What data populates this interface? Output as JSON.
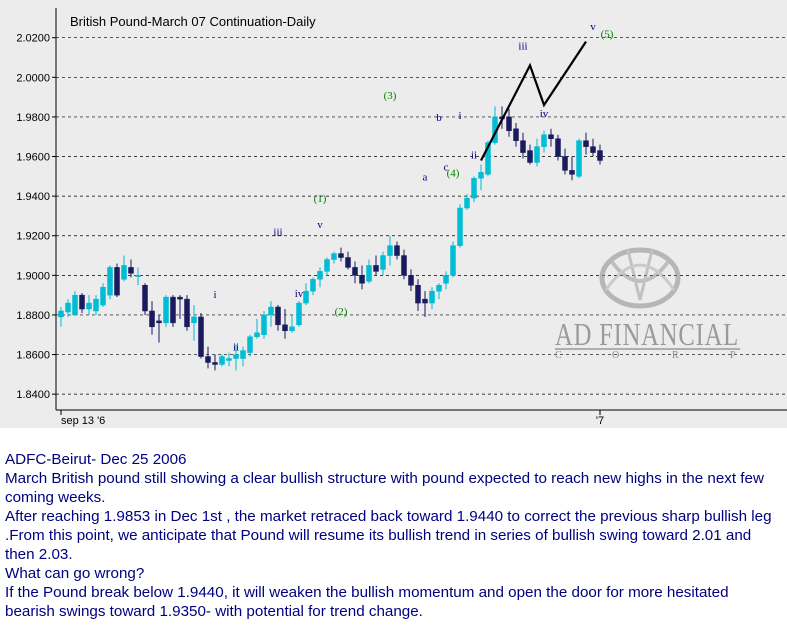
{
  "chart_data": {
    "type": "candlestick",
    "title": "British Pound-March 07 Continuation-Daily",
    "ylim": [
      1.832,
      2.035
    ],
    "y_ticks": [
      "2.0200",
      "2.0000",
      "1.9800",
      "1.9600",
      "1.9400",
      "1.9200",
      "1.9000",
      "1.8800",
      "1.8600",
      "1.8400"
    ],
    "x_tick_labels": [
      {
        "label": "sep 13 '6",
        "index": 0
      },
      {
        "label": "'7",
        "index": 77
      }
    ],
    "grid": true,
    "candles": [
      {
        "o": 1.879,
        "h": 1.884,
        "l": 1.874,
        "c": 1.882
      },
      {
        "o": 1.8815,
        "h": 1.888,
        "l": 1.879,
        "c": 1.886
      },
      {
        "o": 1.88,
        "h": 1.892,
        "l": 1.88,
        "c": 1.89
      },
      {
        "o": 1.89,
        "h": 1.891,
        "l": 1.881,
        "c": 1.883
      },
      {
        "o": 1.883,
        "h": 1.89,
        "l": 1.88,
        "c": 1.886
      },
      {
        "o": 1.882,
        "h": 1.89,
        "l": 1.88,
        "c": 1.888
      },
      {
        "o": 1.885,
        "h": 1.896,
        "l": 1.884,
        "c": 1.894
      },
      {
        "o": 1.89,
        "h": 1.905,
        "l": 1.888,
        "c": 1.904
      },
      {
        "o": 1.904,
        "h": 1.906,
        "l": 1.889,
        "c": 1.89
      },
      {
        "o": 1.898,
        "h": 1.91,
        "l": 1.897,
        "c": 1.905
      },
      {
        "o": 1.904,
        "h": 1.908,
        "l": 1.899,
        "c": 1.901
      },
      {
        "o": 1.9,
        "h": 1.904,
        "l": 1.895,
        "c": 1.9
      },
      {
        "o": 1.895,
        "h": 1.896,
        "l": 1.88,
        "c": 1.882
      },
      {
        "o": 1.882,
        "h": 1.887,
        "l": 1.87,
        "c": 1.874
      },
      {
        "o": 1.877,
        "h": 1.88,
        "l": 1.866,
        "c": 1.876
      },
      {
        "o": 1.876,
        "h": 1.89,
        "l": 1.874,
        "c": 1.889
      },
      {
        "o": 1.889,
        "h": 1.89,
        "l": 1.874,
        "c": 1.876
      },
      {
        "o": 1.889,
        "h": 1.89,
        "l": 1.878,
        "c": 1.888
      },
      {
        "o": 1.888,
        "h": 1.89,
        "l": 1.872,
        "c": 1.874
      },
      {
        "o": 1.876,
        "h": 1.885,
        "l": 1.867,
        "c": 1.879
      },
      {
        "o": 1.879,
        "h": 1.881,
        "l": 1.858,
        "c": 1.859
      },
      {
        "o": 1.859,
        "h": 1.864,
        "l": 1.853,
        "c": 1.856
      },
      {
        "o": 1.856,
        "h": 1.86,
        "l": 1.852,
        "c": 1.855
      },
      {
        "o": 1.855,
        "h": 1.86,
        "l": 1.854,
        "c": 1.859
      },
      {
        "o": 1.857,
        "h": 1.861,
        "l": 1.854,
        "c": 1.858
      },
      {
        "o": 1.858,
        "h": 1.865,
        "l": 1.852,
        "c": 1.86
      },
      {
        "o": 1.858,
        "h": 1.864,
        "l": 1.854,
        "c": 1.862
      },
      {
        "o": 1.861,
        "h": 1.87,
        "l": 1.859,
        "c": 1.869
      },
      {
        "o": 1.869,
        "h": 1.878,
        "l": 1.868,
        "c": 1.871
      },
      {
        "o": 1.87,
        "h": 1.882,
        "l": 1.868,
        "c": 1.88
      },
      {
        "o": 1.88,
        "h": 1.887,
        "l": 1.874,
        "c": 1.884
      },
      {
        "o": 1.884,
        "h": 1.885,
        "l": 1.872,
        "c": 1.875
      },
      {
        "o": 1.875,
        "h": 1.883,
        "l": 1.868,
        "c": 1.872
      },
      {
        "o": 1.872,
        "h": 1.88,
        "l": 1.871,
        "c": 1.874
      },
      {
        "o": 1.875,
        "h": 1.887,
        "l": 1.874,
        "c": 1.886
      },
      {
        "o": 1.886,
        "h": 1.896,
        "l": 1.885,
        "c": 1.892
      },
      {
        "o": 1.892,
        "h": 1.899,
        "l": 1.89,
        "c": 1.898
      },
      {
        "o": 1.898,
        "h": 1.904,
        "l": 1.894,
        "c": 1.902
      },
      {
        "o": 1.902,
        "h": 1.909,
        "l": 1.9,
        "c": 1.908
      },
      {
        "o": 1.908,
        "h": 1.912,
        "l": 1.906,
        "c": 1.911
      },
      {
        "o": 1.911,
        "h": 1.914,
        "l": 1.907,
        "c": 1.909
      },
      {
        "o": 1.909,
        "h": 1.912,
        "l": 1.903,
        "c": 1.904
      },
      {
        "o": 1.904,
        "h": 1.907,
        "l": 1.896,
        "c": 1.9
      },
      {
        "o": 1.9,
        "h": 1.905,
        "l": 1.893,
        "c": 1.896
      },
      {
        "o": 1.897,
        "h": 1.908,
        "l": 1.896,
        "c": 1.905
      },
      {
        "o": 1.905,
        "h": 1.91,
        "l": 1.9,
        "c": 1.902
      },
      {
        "o": 1.903,
        "h": 1.912,
        "l": 1.9,
        "c": 1.91
      },
      {
        "o": 1.91,
        "h": 1.92,
        "l": 1.905,
        "c": 1.915
      },
      {
        "o": 1.915,
        "h": 1.917,
        "l": 1.908,
        "c": 1.91
      },
      {
        "o": 1.91,
        "h": 1.913,
        "l": 1.898,
        "c": 1.9
      },
      {
        "o": 1.9,
        "h": 1.903,
        "l": 1.892,
        "c": 1.895
      },
      {
        "o": 1.895,
        "h": 1.898,
        "l": 1.882,
        "c": 1.886
      },
      {
        "o": 1.888,
        "h": 1.892,
        "l": 1.879,
        "c": 1.886
      },
      {
        "o": 1.886,
        "h": 1.894,
        "l": 1.883,
        "c": 1.892
      },
      {
        "o": 1.892,
        "h": 1.896,
        "l": 1.888,
        "c": 1.895
      },
      {
        "o": 1.896,
        "h": 1.902,
        "l": 1.893,
        "c": 1.9
      },
      {
        "o": 1.9,
        "h": 1.917,
        "l": 1.899,
        "c": 1.915
      },
      {
        "o": 1.915,
        "h": 1.936,
        "l": 1.914,
        "c": 1.934
      },
      {
        "o": 1.934,
        "h": 1.941,
        "l": 1.933,
        "c": 1.939
      },
      {
        "o": 1.939,
        "h": 1.95,
        "l": 1.937,
        "c": 1.949
      },
      {
        "o": 1.949,
        "h": 1.956,
        "l": 1.943,
        "c": 1.952
      },
      {
        "o": 1.951,
        "h": 1.968,
        "l": 1.95,
        "c": 1.967
      },
      {
        "o": 1.967,
        "h": 1.9853,
        "l": 1.966,
        "c": 1.98
      },
      {
        "o": 1.98,
        "h": 1.9853,
        "l": 1.974,
        "c": 1.979
      },
      {
        "o": 1.98,
        "h": 1.984,
        "l": 1.97,
        "c": 1.973
      },
      {
        "o": 1.974,
        "h": 1.977,
        "l": 1.965,
        "c": 1.968
      },
      {
        "o": 1.968,
        "h": 1.972,
        "l": 1.959,
        "c": 1.962
      },
      {
        "o": 1.963,
        "h": 1.966,
        "l": 1.956,
        "c": 1.957
      },
      {
        "o": 1.957,
        "h": 1.969,
        "l": 1.955,
        "c": 1.965
      },
      {
        "o": 1.965,
        "h": 1.973,
        "l": 1.962,
        "c": 1.971
      },
      {
        "o": 1.971,
        "h": 1.974,
        "l": 1.965,
        "c": 1.969
      },
      {
        "o": 1.969,
        "h": 1.971,
        "l": 1.958,
        "c": 1.96
      },
      {
        "o": 1.96,
        "h": 1.964,
        "l": 1.951,
        "c": 1.953
      },
      {
        "o": 1.953,
        "h": 1.96,
        "l": 1.948,
        "c": 1.951
      },
      {
        "o": 1.95,
        "h": 1.969,
        "l": 1.949,
        "c": 1.968
      },
      {
        "o": 1.968,
        "h": 1.972,
        "l": 1.961,
        "c": 1.965
      },
      {
        "o": 1.965,
        "h": 1.969,
        "l": 1.96,
        "c": 1.962
      },
      {
        "o": 1.963,
        "h": 1.966,
        "l": 1.956,
        "c": 1.958
      }
    ],
    "wave_labels": [
      {
        "label": "i",
        "index": 22,
        "y": 1.8885,
        "color": "#000080"
      },
      {
        "label": "ii",
        "index": 25,
        "y": 1.862,
        "color": "#000080"
      },
      {
        "label": "iii",
        "index": 31,
        "y": 1.92,
        "color": "#000080"
      },
      {
        "label": "iv",
        "index": 34,
        "y": 1.889,
        "color": "#000080"
      },
      {
        "label": "v",
        "index": 37,
        "y": 1.924,
        "color": "#000080"
      },
      {
        "label": "(1)",
        "index": 37,
        "y": 1.937,
        "color": "#008000"
      },
      {
        "label": "(2)",
        "index": 40,
        "y": 1.88,
        "color": "#008000"
      },
      {
        "label": "(3)",
        "index": 47,
        "y": 1.989,
        "color": "#008000"
      },
      {
        "label": "a",
        "index": 52,
        "y": 1.948,
        "color": "#000080"
      },
      {
        "label": "b",
        "index": 54,
        "y": 1.978,
        "color": "#000080"
      },
      {
        "label": "c",
        "index": 55,
        "y": 1.953,
        "color": "#000080"
      },
      {
        "label": "(4)",
        "index": 56,
        "y": 1.95,
        "color": "#008000"
      },
      {
        "label": "i",
        "index": 57,
        "y": 1.979,
        "color": "#000080"
      },
      {
        "label": "ii",
        "index": 59,
        "y": 1.959,
        "color": "#000080"
      },
      {
        "label": "iii",
        "index": 66,
        "y": 2.014,
        "color": "#000080"
      },
      {
        "label": "iv",
        "index": 69,
        "y": 1.98,
        "color": "#000080"
      },
      {
        "label": "v",
        "index": 76,
        "y": 2.024,
        "color": "#000080"
      },
      {
        "label": "(5)",
        "index": 78,
        "y": 2.02,
        "color": "#008000"
      }
    ],
    "projection": [
      {
        "index": 60,
        "y": 1.958
      },
      {
        "index": 67,
        "y": 2.006
      },
      {
        "index": 69,
        "y": 1.986
      },
      {
        "index": 75,
        "y": 2.018
      }
    ]
  },
  "logo": {
    "line1": "AD FINANCIAL",
    "line2_letters": [
      "C",
      "O",
      "R",
      "P"
    ]
  },
  "commentary": {
    "header": "ADFC-Beirut- Dec 25 2006",
    "lines": [
      "March British pound still showing a clear bullish structure with pound expected to reach new highs in the next few coming weeks.",
      "After reaching 1.9853 in Dec 1st , the market retraced back toward 1.9440 to correct the previous sharp bullish leg .From this point, we anticipate that Pound will resume its bullish trend in series of bullish swing toward 2.01 and then 2.03.",
      "What can go wrong?",
      "If the Pound break below 1.9440, it will weaken the bullish momentum and open the door for more hesitated bearish swings toward 1.9350- with potential for   trend change."
    ]
  }
}
